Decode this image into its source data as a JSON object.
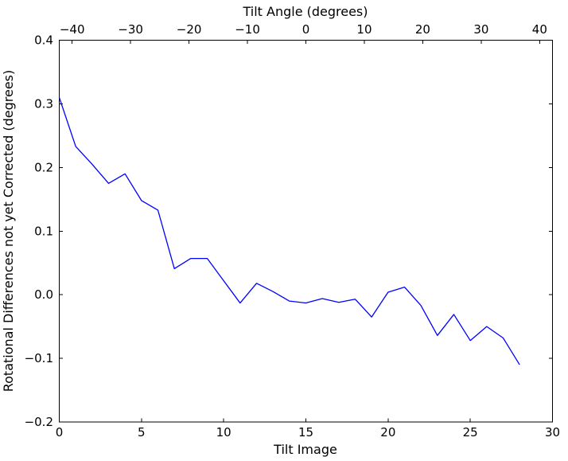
{
  "figure": {
    "background": "#ffffff",
    "spine_color": "#000000"
  },
  "chart_data": {
    "type": "line",
    "top_axis_title": "Tilt Angle (degrees)",
    "xlabel": "Tilt Image",
    "ylabel": "Rotational Differences not yet Corrected (degrees)",
    "xlim": [
      0,
      30
    ],
    "ylim": [
      -0.2,
      0.4
    ],
    "top_xlim": [
      -42.2,
      42.2
    ],
    "grid": false,
    "legend": null,
    "line_color": "#0000ff",
    "x_ticks": {
      "values": [
        0,
        5,
        10,
        15,
        20,
        25,
        30
      ],
      "labels": [
        "0",
        "5",
        "10",
        "15",
        "20",
        "25",
        "30"
      ]
    },
    "top_ticks": {
      "values": [
        -40,
        -30,
        -20,
        -10,
        0,
        10,
        20,
        30,
        40
      ],
      "labels": [
        "−40",
        "−30",
        "−20",
        "−10",
        "0",
        "10",
        "20",
        "30",
        "40"
      ]
    },
    "y_ticks": {
      "values": [
        0.4,
        0.3,
        0.2,
        0.1,
        0.0,
        -0.1,
        -0.2
      ],
      "labels": [
        "0.4",
        "0.3",
        "0.2",
        "0.1",
        "0.0",
        "−0.1",
        "−0.2"
      ]
    },
    "series": [
      {
        "name": "rotational-differences",
        "x": [
          0,
          1,
          2,
          3,
          4,
          5,
          6,
          7,
          8,
          9,
          10,
          11,
          12,
          13,
          14,
          15,
          16,
          17,
          18,
          19,
          20,
          21,
          22,
          23,
          24,
          25,
          26,
          27,
          28
        ],
        "y": [
          0.31,
          0.233,
          0.205,
          0.175,
          0.19,
          0.148,
          0.133,
          0.041,
          0.057,
          0.057,
          0.022,
          -0.013,
          0.018,
          0.005,
          -0.01,
          -0.013,
          -0.006,
          -0.012,
          -0.007,
          -0.035,
          0.004,
          0.012,
          -0.017,
          -0.064,
          -0.031,
          -0.072,
          -0.05,
          -0.068,
          -0.11
        ]
      }
    ]
  }
}
